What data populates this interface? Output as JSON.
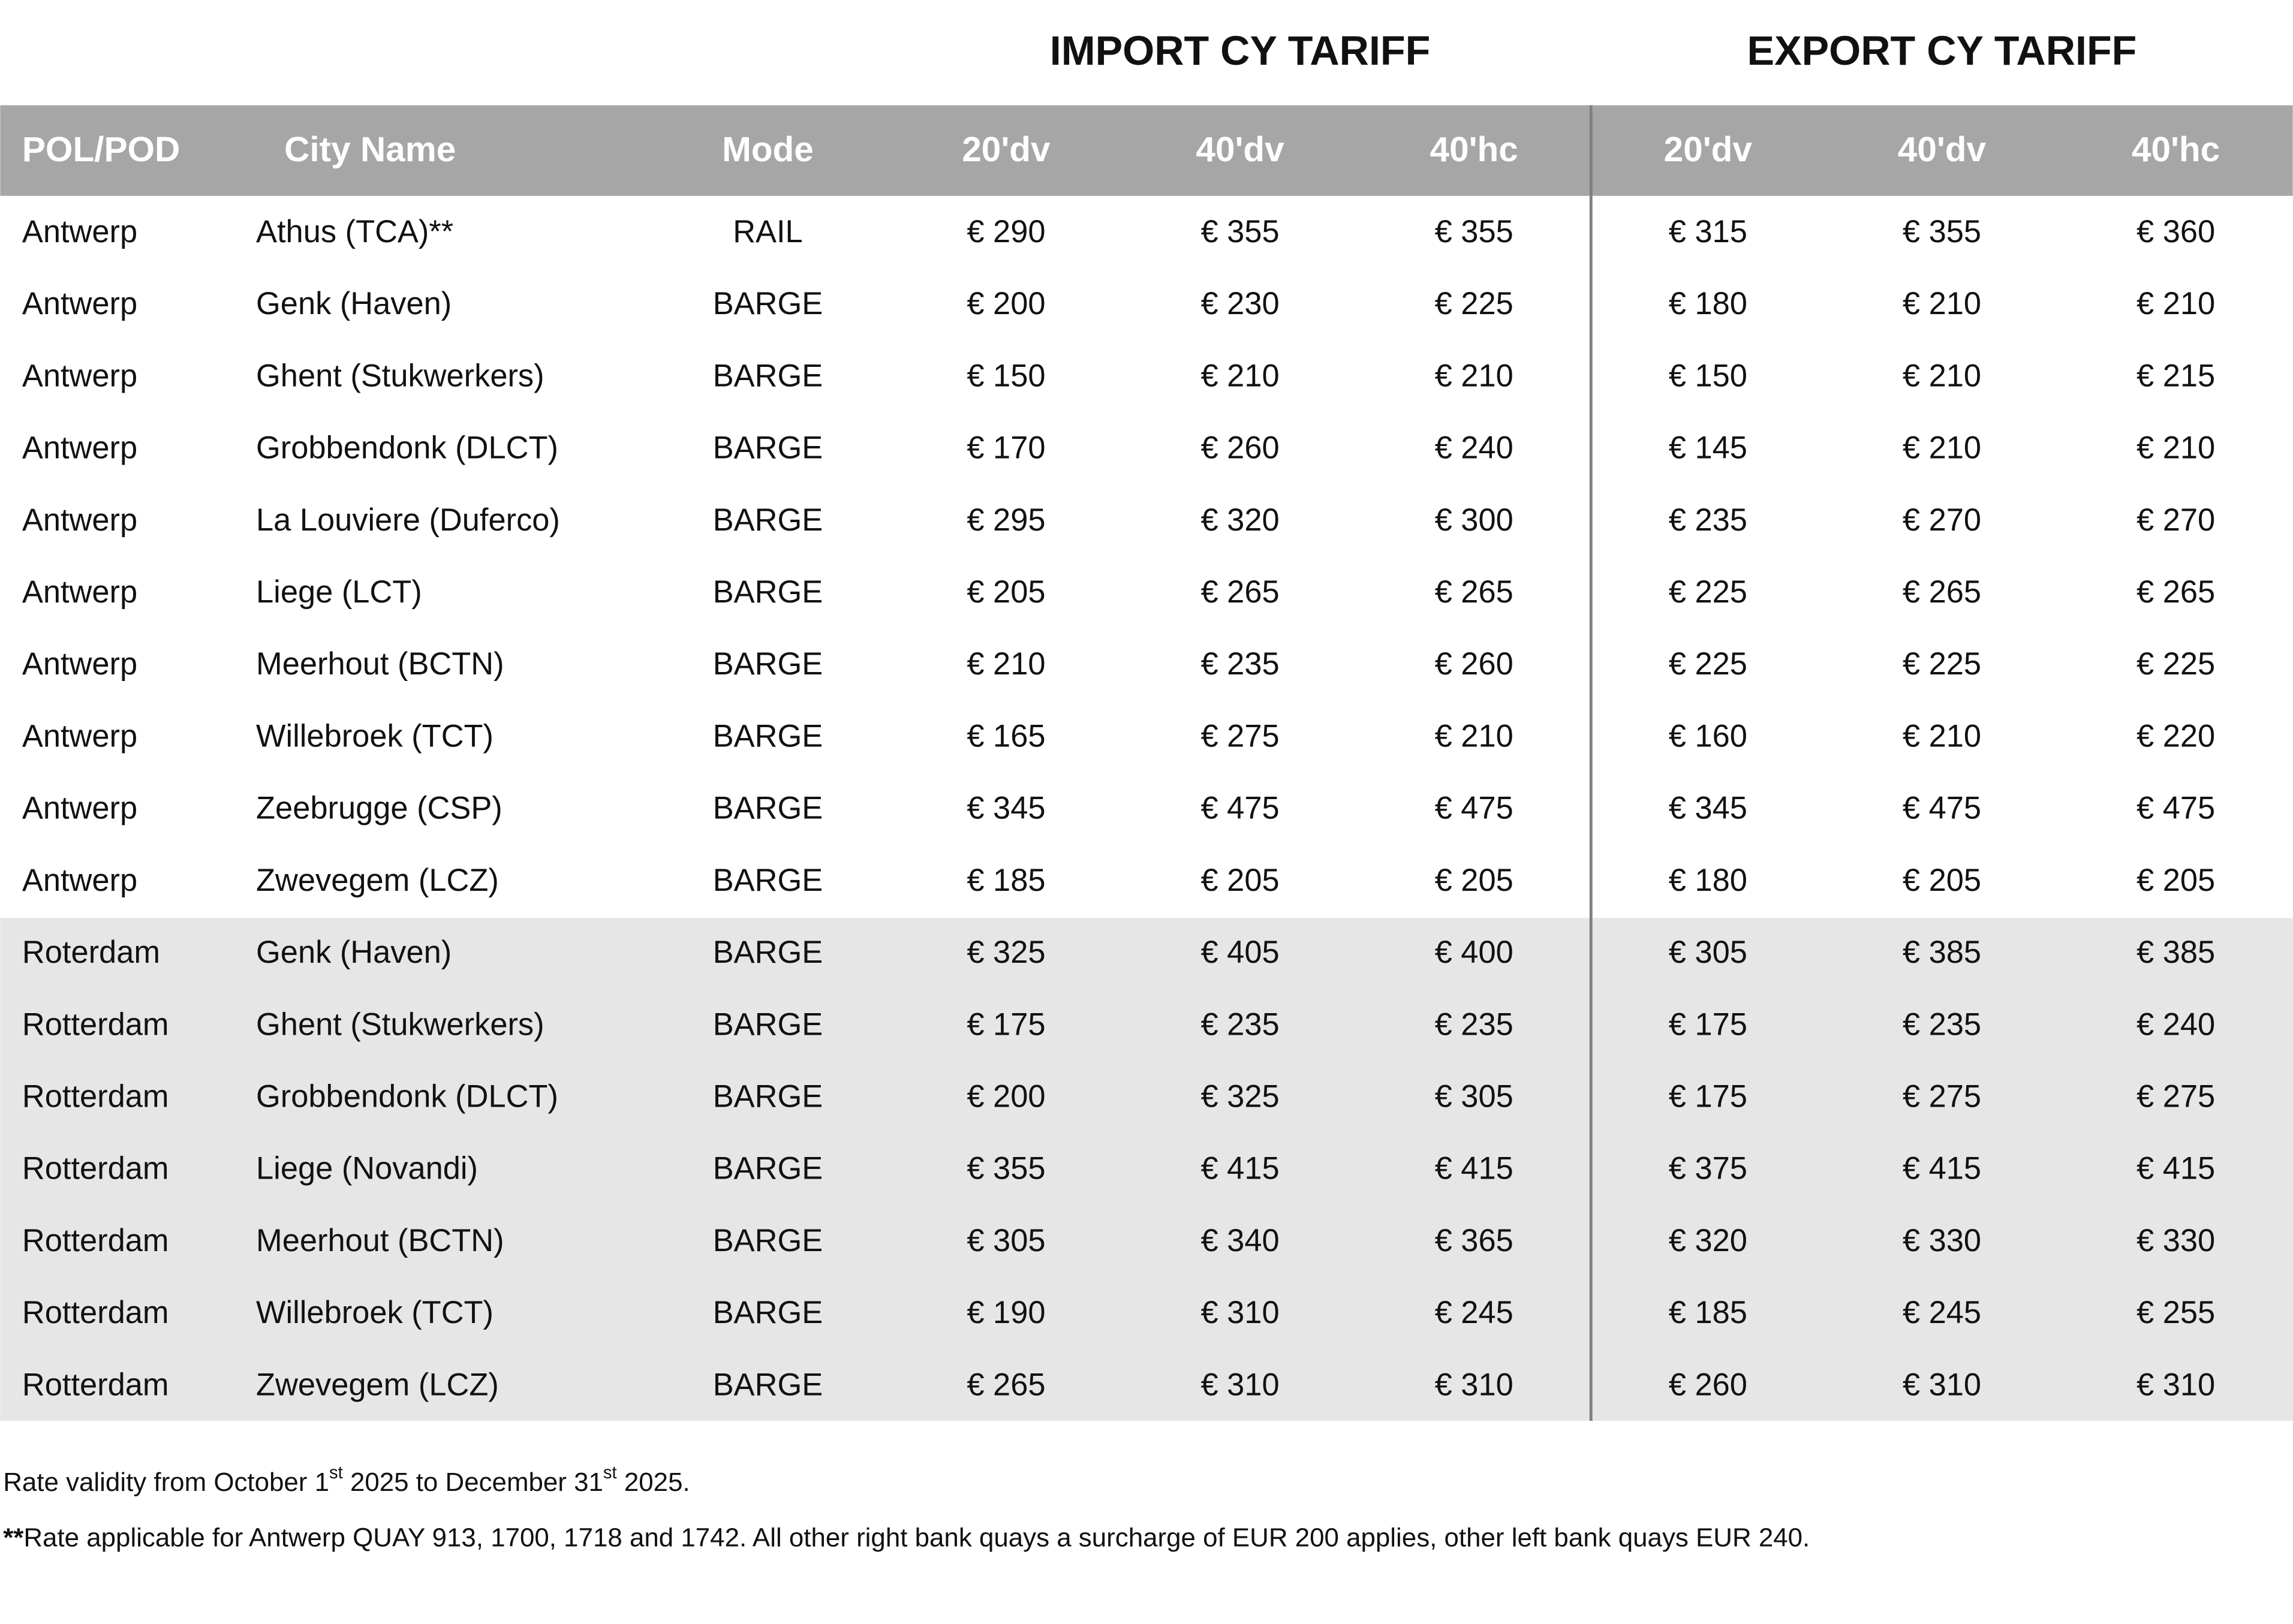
{
  "header": {
    "import_title": "IMPORT CY TARIFF",
    "export_title": "EXPORT CY TARIFF"
  },
  "table": {
    "columns": [
      "POL/POD",
      "City Name",
      "Mode",
      "20'dv",
      "40'dv",
      "40'hc",
      "20'dv",
      "40'dv",
      "40'hc"
    ],
    "rows": [
      [
        "Antwerp",
        "Athus (TCA)**",
        "RAIL",
        "€ 290",
        "€ 355",
        "€ 355",
        "€ 315",
        "€ 355",
        "€ 360"
      ],
      [
        "Antwerp",
        "Genk (Haven)",
        "BARGE",
        "€ 200",
        "€ 230",
        "€ 225",
        "€ 180",
        "€ 210",
        "€ 210"
      ],
      [
        "Antwerp",
        "Ghent (Stukwerkers)",
        "BARGE",
        "€ 150",
        "€ 210",
        "€ 210",
        "€ 150",
        "€ 210",
        "€ 215"
      ],
      [
        "Antwerp",
        "Grobbendonk (DLCT)",
        "BARGE",
        "€ 170",
        "€ 260",
        "€ 240",
        "€ 145",
        "€ 210",
        "€ 210"
      ],
      [
        "Antwerp",
        "La Louviere (Duferco)",
        "BARGE",
        "€ 295",
        "€ 320",
        "€ 300",
        "€ 235",
        "€ 270",
        "€ 270"
      ],
      [
        "Antwerp",
        "Liege (LCT)",
        "BARGE",
        "€ 205",
        "€ 265",
        "€ 265",
        "€ 225",
        "€ 265",
        "€ 265"
      ],
      [
        "Antwerp",
        "Meerhout (BCTN)",
        "BARGE",
        "€ 210",
        "€ 235",
        "€ 260",
        "€ 225",
        "€ 225",
        "€ 225"
      ],
      [
        "Antwerp",
        "Willebroek (TCT)",
        "BARGE",
        "€ 165",
        "€ 275",
        "€ 210",
        "€ 160",
        "€ 210",
        "€ 220"
      ],
      [
        "Antwerp",
        "Zeebrugge (CSP)",
        "BARGE",
        "€ 345",
        "€ 475",
        "€ 475",
        "€ 345",
        "€ 475",
        "€ 475"
      ],
      [
        "Antwerp",
        "Zwevegem (LCZ)",
        "BARGE",
        "€ 185",
        "€ 205",
        "€ 205",
        "€ 180",
        "€ 205",
        "€ 205"
      ],
      [
        "Roterdam",
        "Genk (Haven)",
        "BARGE",
        "€ 325",
        "€ 405",
        "€ 400",
        "€ 305",
        "€ 385",
        "€ 385"
      ],
      [
        "Rotterdam",
        "Ghent (Stukwerkers)",
        "BARGE",
        "€ 175",
        "€ 235",
        "€ 235",
        "€ 175",
        "€ 235",
        "€ 240"
      ],
      [
        "Rotterdam",
        "Grobbendonk (DLCT)",
        "BARGE",
        "€ 200",
        "€ 325",
        "€ 305",
        "€ 175",
        "€ 275",
        "€ 275"
      ],
      [
        "Rotterdam",
        "Liege (Novandi)",
        "BARGE",
        "€ 355",
        "€ 415",
        "€ 415",
        "€ 375",
        "€ 415",
        "€ 415"
      ],
      [
        "Rotterdam",
        "Meerhout (BCTN)",
        "BARGE",
        "€ 305",
        "€ 340",
        "€ 365",
        "€ 320",
        "€ 330",
        "€ 330"
      ],
      [
        "Rotterdam",
        "Willebroek (TCT)",
        "BARGE",
        "€ 190",
        "€ 310",
        "€ 245",
        "€ 185",
        "€ 245",
        "€ 255"
      ],
      [
        "Rotterdam",
        "Zwevegem (LCZ)",
        "BARGE",
        "€ 265",
        "€ 310",
        "€ 310",
        "€ 260",
        "€ 310",
        "€ 310"
      ]
    ]
  },
  "notes": {
    "validity": [
      "Rate validity from October 1",
      "st",
      " 2025 to December 31",
      "st",
      " 2025."
    ],
    "quay": [
      "**",
      "Rate applicable for Antwerp QUAY 913, 1700, 1718 and 1742. All other right bank quays a surcharge of EUR 200 applies, other left bank quays EUR 240."
    ]
  }
}
